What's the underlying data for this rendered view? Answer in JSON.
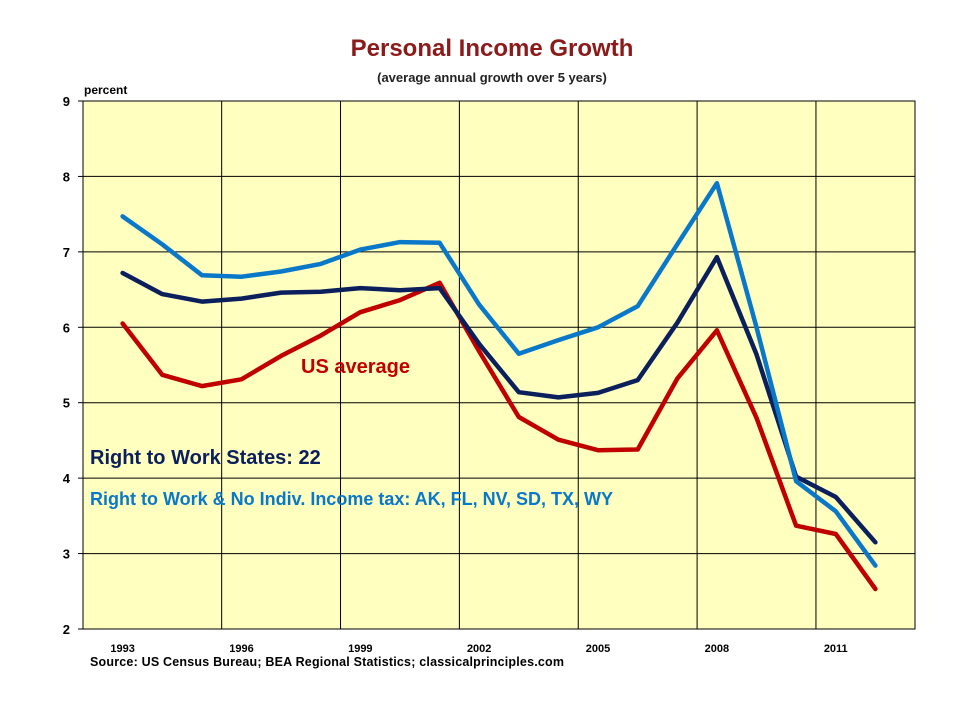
{
  "chart_data": {
    "type": "line",
    "title": "Personal Income Growth",
    "subtitle": "(average annual growth over 5 years)",
    "ylabel": "percent",
    "xlabel": "",
    "ylim": [
      2,
      9
    ],
    "xlim": [
      1992,
      2013
    ],
    "yticks": [
      2,
      3,
      4,
      5,
      6,
      7,
      8,
      9
    ],
    "xticks": [
      1993,
      1996,
      1999,
      2002,
      2005,
      2008,
      2011
    ],
    "grid": true,
    "x": [
      1993,
      1994,
      1995,
      1996,
      1997,
      1998,
      1999,
      2000,
      2001,
      2002,
      2003,
      2004,
      2005,
      2006,
      2007,
      2008,
      2009,
      2010,
      2011,
      2012
    ],
    "series": [
      {
        "name": "US average",
        "color": "#C00000",
        "values": [
          6.05,
          5.37,
          5.22,
          5.31,
          5.62,
          5.89,
          6.2,
          6.36,
          6.59,
          5.68,
          4.81,
          4.51,
          4.37,
          4.38,
          5.32,
          5.96,
          4.8,
          3.37,
          3.26,
          2.53
        ]
      },
      {
        "name": "Right to Work States: 22",
        "color": "#0B1F5C",
        "values": [
          6.72,
          6.44,
          6.34,
          6.38,
          6.46,
          6.47,
          6.52,
          6.49,
          6.52,
          5.78,
          5.14,
          5.07,
          5.13,
          5.3,
          6.06,
          6.93,
          5.64,
          4.02,
          3.75,
          3.15
        ]
      },
      {
        "name": "Right to Work & No Indiv. Income tax: AK, FL, NV, SD, TX, WY",
        "color": "#0A78C8",
        "values": [
          7.47,
          7.1,
          6.69,
          6.67,
          6.74,
          6.84,
          7.03,
          7.13,
          7.12,
          6.3,
          5.65,
          5.83,
          6.0,
          6.28,
          7.1,
          7.91,
          6.0,
          3.96,
          3.56,
          2.84
        ]
      }
    ],
    "annotations": [
      {
        "text": "US average",
        "color": "#C00000"
      },
      {
        "text": "Right to Work States: 22",
        "color": "#0B1F5C"
      },
      {
        "text": "Right to Work & No Indiv. Income tax: AK, FL, NV, SD, TX, WY",
        "color": "#0A78C8"
      }
    ],
    "plot_bg": "#FFFFC0",
    "source": "Source: US Census Bureau; BEA Regional Statistics; classicalprinciples.com"
  }
}
